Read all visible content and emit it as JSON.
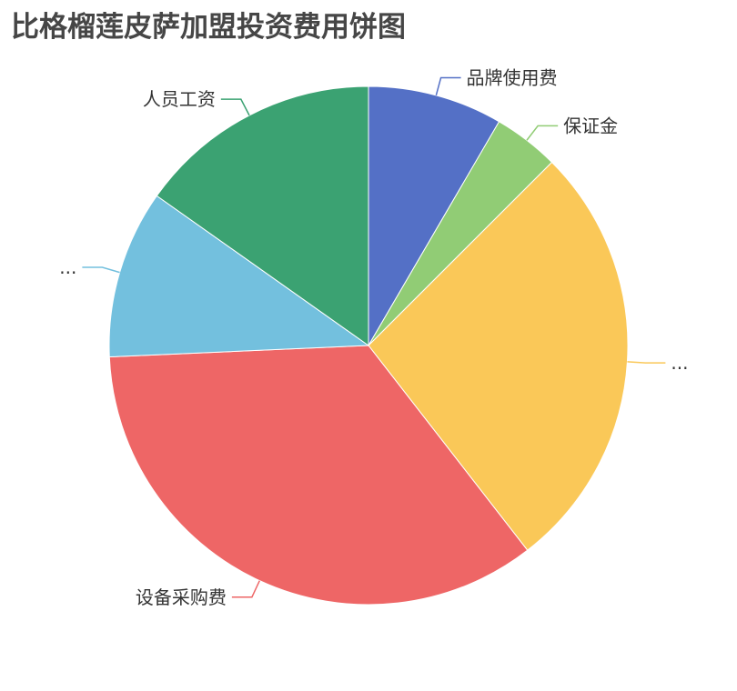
{
  "chart_data": {
    "type": "pie",
    "title": "比格榴莲皮萨加盟投资费用饼图",
    "slices": [
      {
        "label": "品牌使用费",
        "value": 8.4,
        "color": "#5470c6"
      },
      {
        "label": "保证金",
        "value": 4.1,
        "color": "#91cc75"
      },
      {
        "label": "...",
        "value": 27.0,
        "color": "#fac858"
      },
      {
        "label": "设备采购费",
        "value": 34.8,
        "color": "#ee6666"
      },
      {
        "label": "...",
        "value": 10.5,
        "color": "#73c0de"
      },
      {
        "label": "人员工资",
        "value": 15.2,
        "color": "#3ba272"
      }
    ],
    "legend": "none"
  }
}
